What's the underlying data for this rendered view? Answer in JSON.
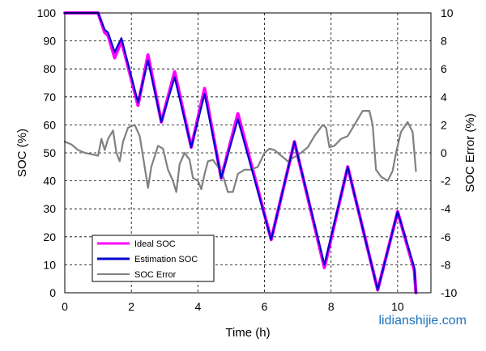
{
  "chart_data": {
    "type": "line",
    "xlabel": "Time (h)",
    "ylabel": "SOC (%)",
    "y2label": "SOC Error (%)",
    "xlim": [
      0,
      11
    ],
    "ylim": [
      0,
      100
    ],
    "y2lim": [
      -10,
      10
    ],
    "grid": true,
    "legend_position": "bottom-left",
    "x_ticks": [
      "0",
      "2",
      "4",
      "6",
      "8",
      "10"
    ],
    "x_tick_values": [
      0,
      2,
      4,
      6,
      8,
      10
    ],
    "y_ticks": [
      "0",
      "10",
      "20",
      "30",
      "40",
      "50",
      "60",
      "70",
      "80",
      "90",
      "100"
    ],
    "y_tick_values": [
      0,
      10,
      20,
      30,
      40,
      50,
      60,
      70,
      80,
      90,
      100
    ],
    "y2_ticks": [
      "-10",
      "-8",
      "-6",
      "-4",
      "-2",
      "0",
      "2",
      "4",
      "6",
      "8",
      "10"
    ],
    "y2_tick_values": [
      -10,
      -8,
      -6,
      -4,
      -2,
      0,
      2,
      4,
      6,
      8,
      10
    ],
    "series": [
      {
        "name": "Ideal SOC",
        "color": "#ff00ff",
        "axis": "left",
        "points": [
          [
            0,
            100
          ],
          [
            1.0,
            100
          ],
          [
            1.2,
            93
          ],
          [
            1.3,
            92
          ],
          [
            1.5,
            84
          ],
          [
            1.7,
            90
          ],
          [
            2.2,
            67
          ],
          [
            2.5,
            85
          ],
          [
            2.9,
            61
          ],
          [
            3.3,
            79
          ],
          [
            3.8,
            52
          ],
          [
            4.2,
            73
          ],
          [
            4.7,
            41
          ],
          [
            5.2,
            64
          ],
          [
            6.2,
            19
          ],
          [
            6.9,
            54
          ],
          [
            7.8,
            9
          ],
          [
            8.5,
            45
          ],
          [
            9.4,
            1
          ],
          [
            10.0,
            29
          ],
          [
            10.5,
            8
          ],
          [
            10.55,
            0
          ]
        ]
      },
      {
        "name": "Estimation SOC",
        "color": "#0000cc",
        "axis": "left",
        "points": [
          [
            0,
            100
          ],
          [
            1.0,
            100
          ],
          [
            1.2,
            94
          ],
          [
            1.3,
            93
          ],
          [
            1.5,
            86
          ],
          [
            1.7,
            91
          ],
          [
            2.2,
            68
          ],
          [
            2.5,
            83
          ],
          [
            2.9,
            61
          ],
          [
            3.3,
            77
          ],
          [
            3.8,
            52
          ],
          [
            4.2,
            71
          ],
          [
            4.7,
            41
          ],
          [
            5.2,
            62
          ],
          [
            6.2,
            19
          ],
          [
            6.9,
            54
          ],
          [
            7.8,
            10
          ],
          [
            8.5,
            45
          ],
          [
            9.4,
            1
          ],
          [
            10.0,
            29
          ],
          [
            10.5,
            9
          ],
          [
            10.55,
            0
          ]
        ]
      },
      {
        "name": "SOC Error",
        "color": "#808080",
        "axis": "right",
        "points": [
          [
            0,
            0.8
          ],
          [
            0.2,
            0.6
          ],
          [
            0.4,
            0.2
          ],
          [
            0.6,
            0
          ],
          [
            0.8,
            -0.1
          ],
          [
            1.0,
            -0.2
          ],
          [
            1.1,
            1
          ],
          [
            1.2,
            0.2
          ],
          [
            1.3,
            1
          ],
          [
            1.45,
            1.6
          ],
          [
            1.55,
            0
          ],
          [
            1.65,
            -0.6
          ],
          [
            1.75,
            0.8
          ],
          [
            1.9,
            1.8
          ],
          [
            2.1,
            2
          ],
          [
            2.25,
            1.2
          ],
          [
            2.4,
            -1
          ],
          [
            2.5,
            -2.5
          ],
          [
            2.6,
            -1
          ],
          [
            2.8,
            0.5
          ],
          [
            2.95,
            0.3
          ],
          [
            3.1,
            -1.2
          ],
          [
            3.25,
            -2
          ],
          [
            3.35,
            -2.8
          ],
          [
            3.45,
            -0.8
          ],
          [
            3.6,
            0
          ],
          [
            3.75,
            -0.5
          ],
          [
            3.85,
            -1.8
          ],
          [
            4.0,
            -2
          ],
          [
            4.1,
            -2.6
          ],
          [
            4.2,
            -1.5
          ],
          [
            4.3,
            -0.6
          ],
          [
            4.45,
            -0.5
          ],
          [
            4.6,
            -1
          ],
          [
            4.7,
            -1.2
          ],
          [
            4.9,
            -2.8
          ],
          [
            5.05,
            -2.8
          ],
          [
            5.2,
            -1.5
          ],
          [
            5.4,
            -1.2
          ],
          [
            5.6,
            -1.2
          ],
          [
            5.8,
            -1
          ],
          [
            6.0,
            0
          ],
          [
            6.15,
            0.3
          ],
          [
            6.3,
            0.2
          ],
          [
            6.5,
            -0.2
          ],
          [
            6.7,
            -0.6
          ],
          [
            6.9,
            -0.3
          ],
          [
            7.1,
            0
          ],
          [
            7.3,
            0.4
          ],
          [
            7.5,
            1.2
          ],
          [
            7.75,
            2
          ],
          [
            7.85,
            1.8
          ],
          [
            7.95,
            0.4
          ],
          [
            8.1,
            0.5
          ],
          [
            8.3,
            1
          ],
          [
            8.5,
            1.2
          ],
          [
            8.7,
            2
          ],
          [
            8.95,
            3
          ],
          [
            9.15,
            3
          ],
          [
            9.25,
            2
          ],
          [
            9.35,
            -1.2
          ],
          [
            9.5,
            -1.7
          ],
          [
            9.7,
            -2
          ],
          [
            9.85,
            -1.3
          ],
          [
            9.95,
            0
          ],
          [
            10.1,
            1.5
          ],
          [
            10.3,
            2.2
          ],
          [
            10.45,
            1.5
          ],
          [
            10.55,
            -1.3
          ]
        ]
      }
    ]
  },
  "watermark": "lidianshijie.com"
}
